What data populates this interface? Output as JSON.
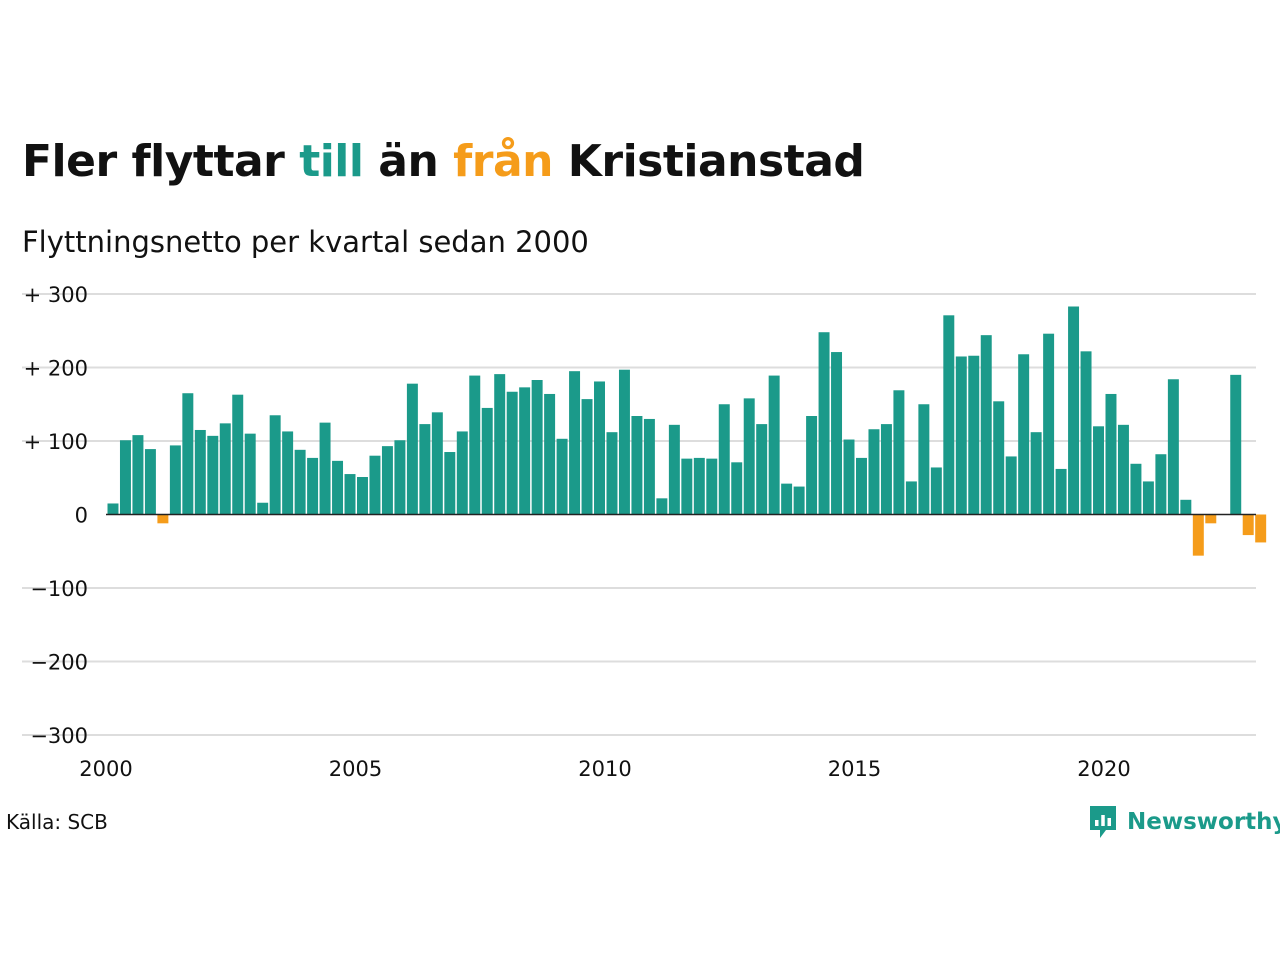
{
  "title": {
    "part1": "Fler flyttar ",
    "part2": "till",
    "part3": " än ",
    "part4": "från",
    "part5": " Kristianstad"
  },
  "subtitle": "Flyttningsnetto per kvartal sedan 2000",
  "source": "Källa: SCB",
  "brand": {
    "name": "Newsworthy",
    "icon": "newsworthy-logo-icon"
  },
  "colors": {
    "positive": "#1b9a8a",
    "negative": "#f59c1a",
    "grid": "#dddddd",
    "text": "#111111"
  },
  "chart_data": {
    "type": "bar",
    "title": "Fler flyttar till än från Kristianstad",
    "subtitle": "Flyttningsnetto per kvartal sedan 2000",
    "x_unit": "quarter",
    "start": "2000 Q1",
    "end": "2023 Q1",
    "xlim": [
      2000,
      2023.25
    ],
    "ylim": [
      -300,
      300
    ],
    "y_ticks": [
      300,
      200,
      100,
      0,
      -100,
      -200,
      -300
    ],
    "y_tick_labels": [
      "+ 300",
      "+ 200",
      "+ 100",
      "0",
      "−100",
      "−200",
      "−300"
    ],
    "x_ticks": [
      2000,
      2005,
      2010,
      2015,
      2020
    ],
    "x_tick_labels": [
      "2000",
      "2005",
      "2010",
      "2015",
      "2020"
    ],
    "grid": true,
    "legend": "none",
    "values": [
      15,
      101,
      108,
      89,
      -12,
      94,
      165,
      115,
      107,
      124,
      163,
      110,
      16,
      135,
      113,
      88,
      77,
      125,
      73,
      55,
      51,
      80,
      93,
      101,
      178,
      123,
      139,
      85,
      113,
      189,
      145,
      191,
      167,
      173,
      183,
      164,
      103,
      195,
      157,
      181,
      112,
      197,
      134,
      130,
      22,
      122,
      76,
      77,
      76,
      150,
      71,
      158,
      123,
      189,
      42,
      38,
      134,
      248,
      221,
      102,
      77,
      116,
      123,
      169,
      45,
      150,
      64,
      271,
      215,
      216,
      244,
      154,
      79,
      218,
      112,
      246,
      62,
      283,
      222,
      120,
      164,
      122,
      69,
      45,
      82,
      184,
      20,
      -56,
      -12,
      0,
      190,
      -28,
      -38
    ]
  }
}
